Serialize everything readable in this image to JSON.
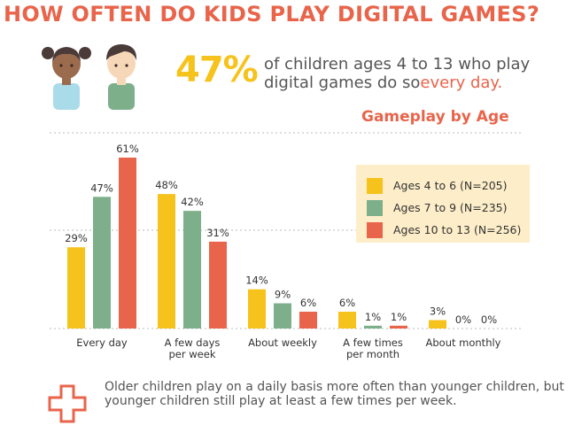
{
  "header": {
    "title": "HOW OFTEN DO KIDS PLAY DIGITAL GAMES?"
  },
  "stat": {
    "percent": "47%",
    "text": "of children ages 4 to 13 who play digital games do so",
    "highlight": "every day."
  },
  "chart_data": {
    "type": "bar",
    "title": "Gameplay by Age",
    "categories": [
      [
        "Every day"
      ],
      [
        "A few days",
        "per week"
      ],
      [
        "About weekly"
      ],
      [
        "A few times",
        "per month"
      ],
      [
        "About monthly"
      ]
    ],
    "series": [
      {
        "name": "Ages 4 to 6 (N=205)",
        "color": "#f6c21c",
        "values": [
          29,
          48,
          14,
          6,
          3
        ]
      },
      {
        "name": "Ages 7 to 9 (N=235)",
        "color": "#7db08a",
        "values": [
          47,
          42,
          9,
          1,
          0
        ]
      },
      {
        "name": "Ages 10 to 13 (N=256)",
        "color": "#e8644b",
        "values": [
          61,
          31,
          6,
          1,
          0
        ]
      }
    ],
    "value_suffix": "%",
    "ylim": [
      0,
      65
    ],
    "legend_position": "top-right",
    "grid": "dotted horizontal lines"
  },
  "footnote": {
    "text": "Older children play on a daily basis more often than younger children, but younger children still play at least a few times per week.",
    "icon": "plus-cross-icon"
  },
  "colors": {
    "accent": "#e8644b",
    "highlight": "#f6c21c",
    "text": "#555555",
    "legend_bg": "#fdeec9"
  }
}
